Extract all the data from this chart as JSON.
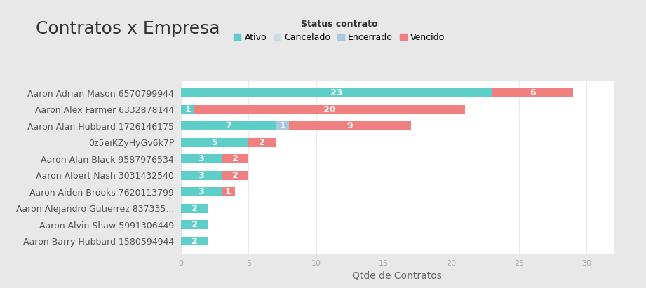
{
  "title": "Contratos x Empresa",
  "xlabel": "Qtde de Contratos",
  "legend_label": "Status contrato",
  "legend_items": [
    "Ativo",
    "Cancelado",
    "Encerrado",
    "Vencido"
  ],
  "colors": {
    "Ativo": "#5ECEC8",
    "Cancelado": "#C8DDE0",
    "Encerrado": "#A8C8E0",
    "Vencido": "#F08080"
  },
  "background_color": "#ffffff",
  "panel_color": "#f9f9f9",
  "companies": [
    "Aaron Adrian Mason 6570799944",
    "Aaron Alex Farmer 6332878144",
    "Aaron Alan Hubbard 1726146175",
    "0z5eiKZyHyGv6k7P",
    "Aaron Alan Black 9587976534",
    "Aaron Albert Nash 3031432540",
    "Aaron Aiden Brooks 7620113799",
    "Aaron Alejandro Gutierrez 837335...",
    "Aaron Alvin Shaw 5991306449",
    "Aaron Barry Hubbard 1580594944"
  ],
  "data": {
    "Ativo": [
      23,
      1,
      7,
      5,
      3,
      3,
      3,
      2,
      2,
      2
    ],
    "Cancelado": [
      0,
      0,
      0,
      0,
      0,
      0,
      0,
      0,
      0,
      0
    ],
    "Encerrado": [
      0,
      0,
      1,
      0,
      0,
      0,
      0,
      0,
      0,
      0
    ],
    "Vencido": [
      6,
      20,
      9,
      2,
      2,
      2,
      1,
      0,
      0,
      0
    ]
  },
  "bar_labels": {
    "Ativo": [
      23,
      1,
      7,
      5,
      3,
      3,
      3,
      2,
      2,
      2
    ],
    "Cancelado": [
      0,
      0,
      0,
      0,
      0,
      0,
      0,
      0,
      0,
      0
    ],
    "Encerrado": [
      0,
      0,
      1,
      0,
      0,
      0,
      0,
      0,
      0,
      0
    ],
    "Vencido": [
      6,
      20,
      9,
      2,
      2,
      2,
      1,
      0,
      0,
      0
    ]
  },
  "title_fontsize": 18,
  "axis_fontsize": 10,
  "bar_label_fontsize": 9,
  "figsize": [
    9.21,
    4.11
  ],
  "dpi": 100
}
